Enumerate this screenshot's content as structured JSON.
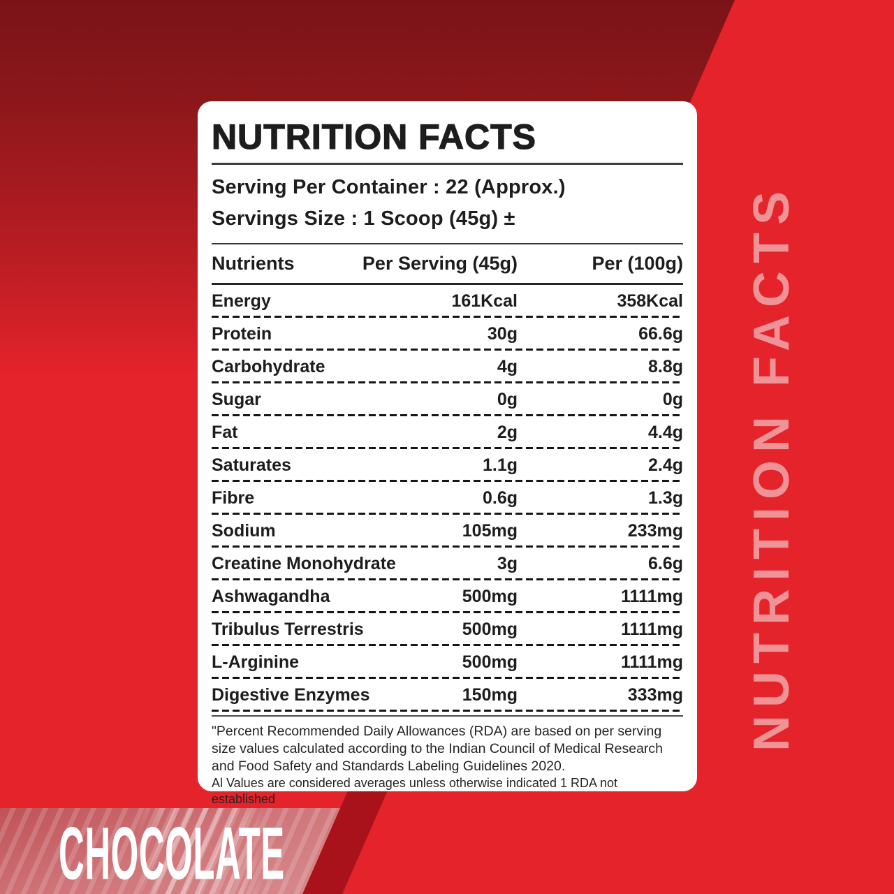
{
  "colors": {
    "background_red": "#e5232b",
    "dark_top_red": "#7a1317",
    "diagonal_band_red": "#a9121a",
    "banner_pink": "#cf7478",
    "watermark_pink": "#ef9396",
    "text_black": "#1d1d1d",
    "card_white": "#ffffff"
  },
  "watermark": {
    "text": "NUTRITION FACTS"
  },
  "flavor": {
    "label": "CHOCOLATE"
  },
  "card": {
    "title": "NUTRITION FACTS",
    "serving_per_container": "Serving Per Container : 22 (Approx.)",
    "serving_size": "Servings Size : 1 Scoop (45g) ±",
    "table": {
      "headers": [
        "Nutrients",
        "Per Serving (45g)",
        "Per (100g)"
      ],
      "rows": [
        {
          "name": "Energy",
          "per_serving": "161Kcal",
          "per_100g": "358Kcal"
        },
        {
          "name": "Protein",
          "per_serving": "30g",
          "per_100g": "66.6g"
        },
        {
          "name": "Carbohydrate",
          "per_serving": "4g",
          "per_100g": "8.8g"
        },
        {
          "name": "Sugar",
          "per_serving": "0g",
          "per_100g": "0g"
        },
        {
          "name": "Fat",
          "per_serving": "2g",
          "per_100g": "4.4g"
        },
        {
          "name": "Saturates",
          "per_serving": "1.1g",
          "per_100g": "2.4g"
        },
        {
          "name": "Fibre",
          "per_serving": "0.6g",
          "per_100g": "1.3g"
        },
        {
          "name": "Sodium",
          "per_serving": "105mg",
          "per_100g": "233mg"
        },
        {
          "name": "Creatine Monohydrate",
          "per_serving": "3g",
          "per_100g": "6.6g"
        },
        {
          "name": "Ashwagandha",
          "per_serving": "500mg",
          "per_100g": "1111mg"
        },
        {
          "name": "Tribulus Terrestris",
          "per_serving": "500mg",
          "per_100g": "1111mg"
        },
        {
          "name": "L-Arginine",
          "per_serving": "500mg",
          "per_100g": "1111mg"
        },
        {
          "name": "Digestive Enzymes",
          "per_serving": "150mg",
          "per_100g": "333mg"
        }
      ]
    },
    "footnote_lines": [
      "\"Percent Recommended Daily Allowances (RDA) are based on per serving",
      "size values calculated according to the Indian Council of Medical Research",
      "and Food Safety and Standards Labeling Guidelines 2020."
    ],
    "footnote_small": "Al Values are considered averages unless otherwise indicated 1 RDA not established"
  }
}
